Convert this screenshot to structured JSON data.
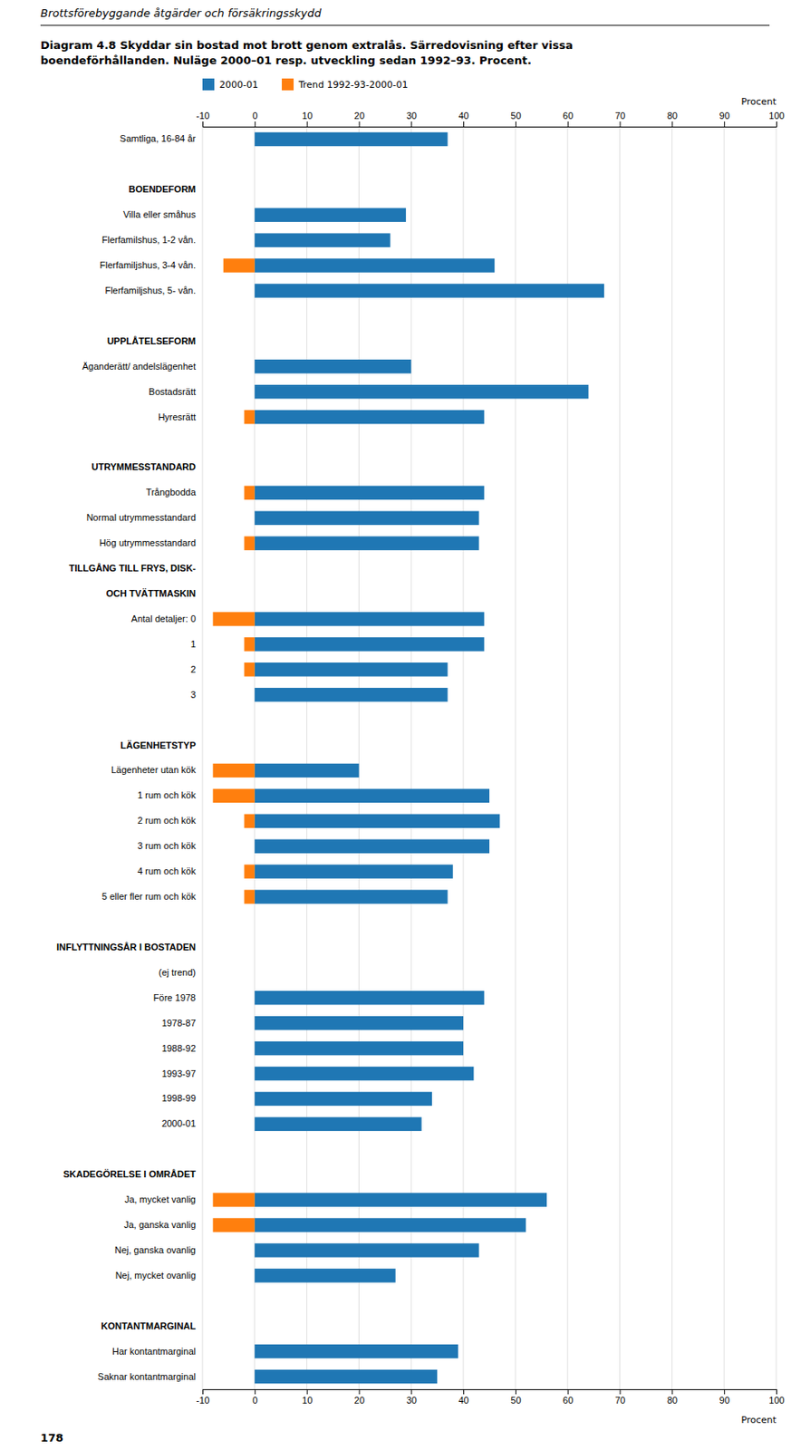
{
  "chart_data": {
    "type": "bar",
    "orientation": "horizontal",
    "title": "Diagram 4.8  Skyddar sin bostad mot brott genom extralås. Särredovisning efter vissa",
    "subtitle": "boendeförhållanden. Nuläge 2000–01 resp. utveckling sedan 1992–93. Procent.",
    "annotations": [
      "Brottsförebyggande åtgärder och försäkringsskydd",
      "178"
    ],
    "xlabel": "Procent",
    "categories": [
      "Samtliga, 16-84 år",
      null,
      "BOENDEFORM",
      "Villa eller småhus",
      "Flerfamilshus, 1-2 vån.",
      "Flerfamiljshus, 3-4 vån.",
      "Flerfamiljshus, 5- vån.",
      null,
      "UPPLÅTELSEFORM",
      "Äganderätt/ andelslägenhet",
      "Bostadsrätt",
      "Hyresrätt",
      null,
      "UTRYMMESSTANDARD",
      "Trångbodda",
      "Normal utrymmesstandard",
      "Hög utrymmesstandard",
      "TILLGÅNG TILL FRYS, DISK-",
      "OCH TVÄTTMASKIN",
      "Antal detaljer: 0",
      "1",
      "2",
      "3",
      null,
      "LÄGENHETSTYP",
      "Lägenheter utan kök",
      "1 rum och kök",
      "2 rum och kök",
      "3 rum och kök",
      "4 rum och kök",
      "5 eller fler rum och kök",
      null,
      "INFLYTTNINGSÅR I BOSTADEN",
      "(ej trend)",
      "Före 1978",
      "1978-87",
      "1988-92",
      "1993-97",
      "1998-99",
      "2000-01",
      null,
      "SKADEGÖRELSE I OMRÅDET",
      "Ja, mycket vanlig",
      "Ja, ganska vanlig",
      "Nej, ganska ovanlig",
      "Nej, mycket ovanlig",
      null,
      "KONTANTMARGINAL",
      "Har kontantmarginal",
      "Saknar kontantmarginal"
    ],
    "series": [
      {
        "name": "2000-01",
        "values": [
          37,
          null,
          null,
          29,
          26,
          46,
          67,
          null,
          null,
          30,
          64,
          44,
          null,
          null,
          44,
          43,
          43,
          null,
          null,
          44,
          44,
          37,
          37,
          null,
          null,
          20,
          45,
          47,
          45,
          38,
          37,
          null,
          null,
          null,
          44,
          40,
          40,
          42,
          34,
          32,
          null,
          null,
          56,
          52,
          43,
          27,
          null,
          null,
          39,
          35
        ]
      },
      {
        "name": "Trend 1992-93-2000-01",
        "values": [
          null,
          null,
          null,
          null,
          null,
          -6,
          null,
          null,
          null,
          null,
          null,
          -2,
          null,
          null,
          -2,
          null,
          -2,
          null,
          null,
          -8,
          -2,
          -2,
          null,
          null,
          null,
          -8,
          -8,
          -2,
          null,
          -2,
          -2,
          null,
          null,
          null,
          null,
          null,
          null,
          null,
          null,
          null,
          null,
          null,
          -8,
          -8,
          null,
          null,
          null,
          null,
          null,
          null
        ]
      }
    ],
    "xlim": [
      -10,
      100
    ],
    "xticks": [
      -10,
      0,
      10,
      20,
      30,
      40,
      50,
      60,
      70,
      80,
      90,
      100
    ],
    "grid": true,
    "legend": "top-left"
  }
}
